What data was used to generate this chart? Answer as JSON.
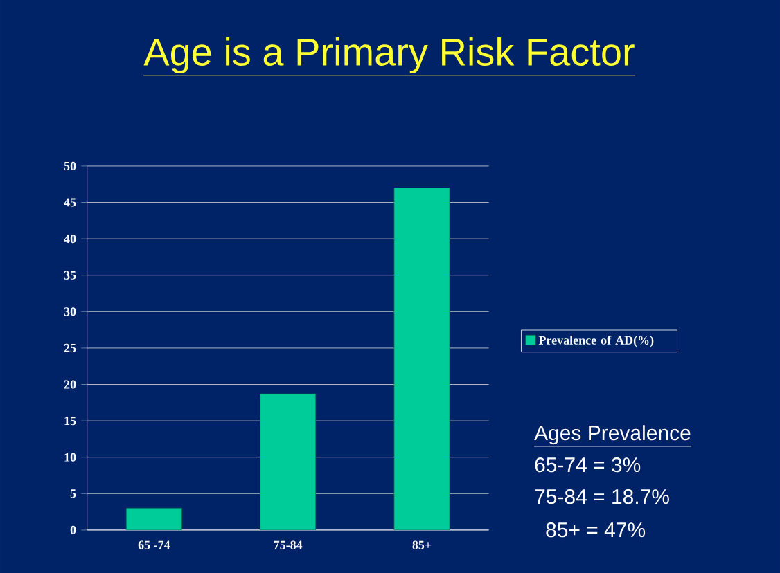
{
  "chart_data": {
    "type": "bar",
    "title": "Age is a Primary Risk Factor",
    "categories": [
      "65 -74",
      "75-84",
      "85+"
    ],
    "series": [
      {
        "name": "Prevalence of AD(%)",
        "color": "#00cc99",
        "values": [
          3,
          18.7,
          47
        ]
      }
    ],
    "ylim": [
      0,
      50
    ],
    "yticks": [
      0,
      5,
      10,
      15,
      20,
      25,
      30,
      35,
      40,
      45,
      50
    ],
    "grid": "y",
    "legend": "right",
    "annotations": [
      "Ages    Prevalence",
      "65-74 = 3%",
      "75-84 = 18.7%",
      "85+  =  47%"
    ]
  }
}
